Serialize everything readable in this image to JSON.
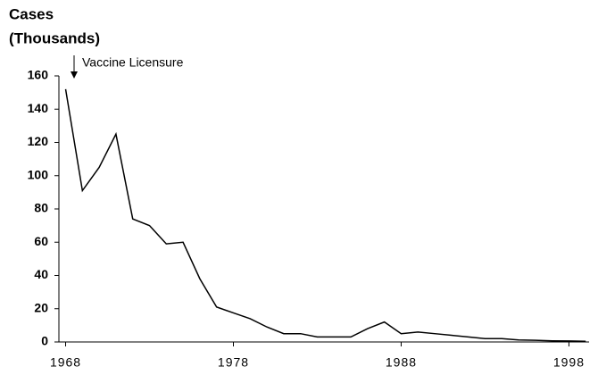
{
  "chart_data": {
    "type": "line",
    "ylabel": [
      "Cases",
      "(Thousands)"
    ],
    "annotation": "Vaccine Licensure",
    "x": [
      1968,
      1969,
      1970,
      1971,
      1972,
      1973,
      1974,
      1975,
      1976,
      1977,
      1978,
      1979,
      1980,
      1981,
      1982,
      1983,
      1984,
      1985,
      1986,
      1987,
      1988,
      1989,
      1990,
      1991,
      1992,
      1993,
      1994,
      1995,
      1996,
      1997,
      1998,
      1999
    ],
    "values": [
      152,
      91,
      105,
      125,
      74,
      70,
      59,
      60,
      38,
      21,
      17.5,
      14,
      9,
      5,
      5,
      3,
      3,
      3,
      8,
      12,
      5,
      6,
      5,
      4,
      3,
      2,
      2,
      1.2,
      1,
      0.7,
      0.6,
      0.4
    ],
    "color": "#000000",
    "xlim": [
      1967.6,
      1999.2
    ],
    "xticks": [
      1968,
      1978,
      1988,
      1998
    ],
    "ylim": [
      0,
      160
    ],
    "yticks": [
      0,
      20,
      40,
      60,
      80,
      100,
      120,
      140,
      160
    ],
    "grid": false
  }
}
